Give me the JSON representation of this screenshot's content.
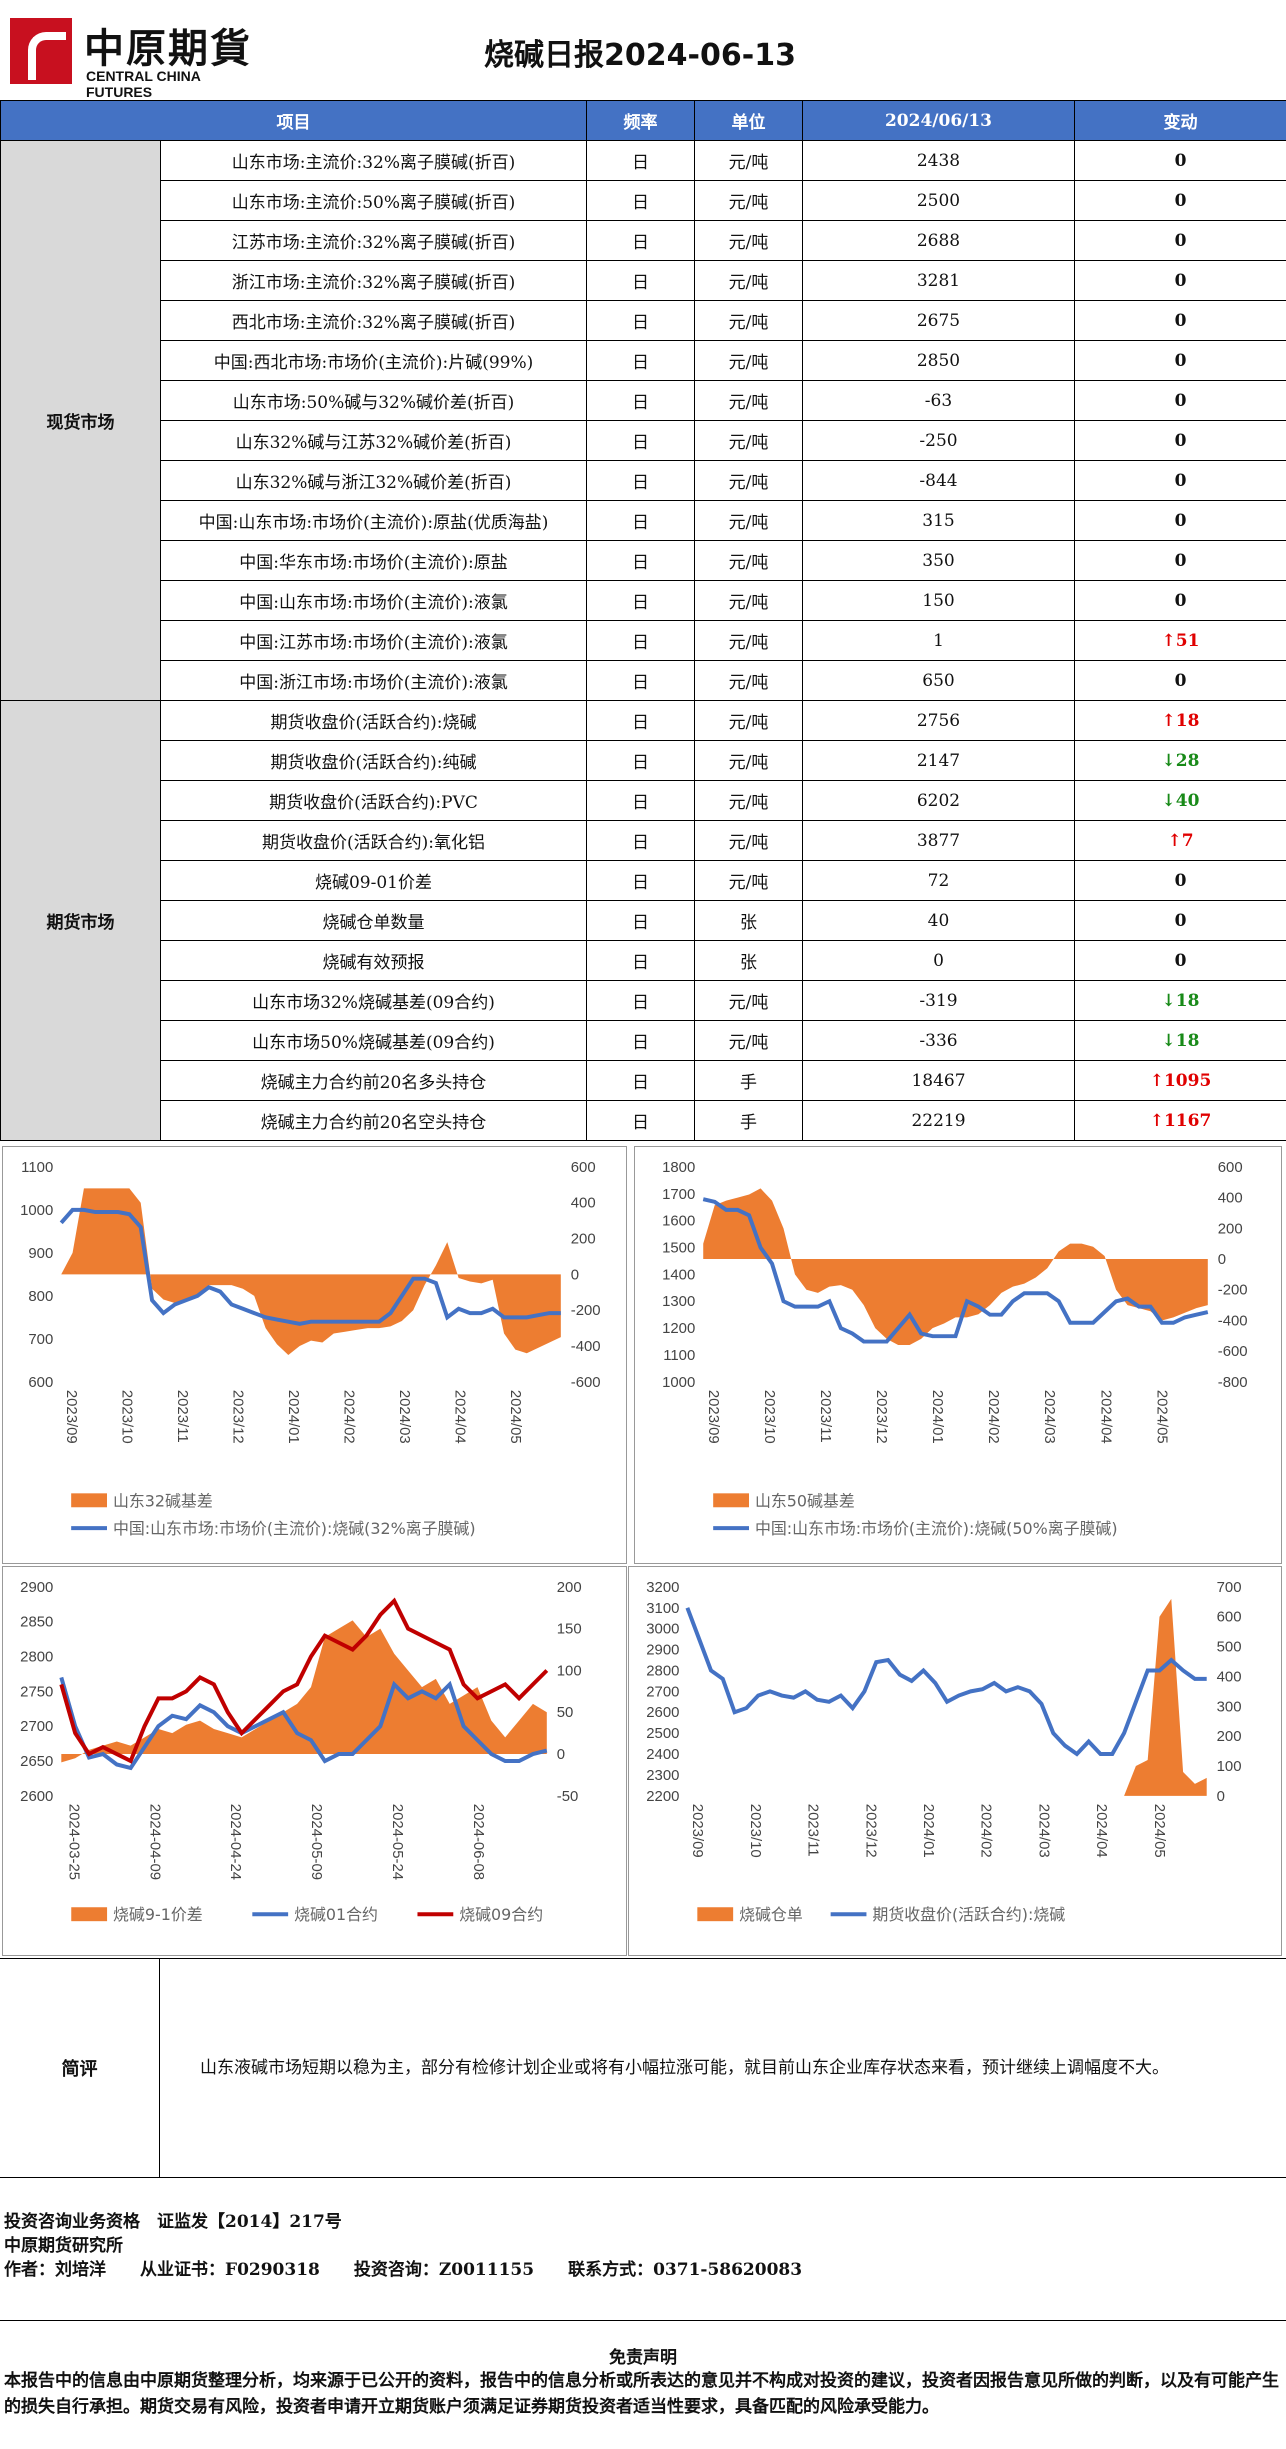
{
  "header": {
    "logo_cn": "中原期貨",
    "logo_en": "CENTRAL CHINA FUTURES",
    "title": "烧碱日报2024-06-13"
  },
  "table": {
    "cols": [
      "项目",
      "频率",
      "单位",
      "2024/06/13",
      "变动"
    ],
    "sections": [
      {
        "name": "现货市场",
        "rows": [
          {
            "item": "山东市场:主流价:32%离子膜碱(折百)",
            "freq": "日",
            "unit": "元/吨",
            "value": "2438",
            "change": "0",
            "dir": ""
          },
          {
            "item": "山东市场:主流价:50%离子膜碱(折百)",
            "freq": "日",
            "unit": "元/吨",
            "value": "2500",
            "change": "0",
            "dir": ""
          },
          {
            "item": "江苏市场:主流价:32%离子膜碱(折百)",
            "freq": "日",
            "unit": "元/吨",
            "value": "2688",
            "change": "0",
            "dir": ""
          },
          {
            "item": "浙江市场:主流价:32%离子膜碱(折百)",
            "freq": "日",
            "unit": "元/吨",
            "value": "3281",
            "change": "0",
            "dir": ""
          },
          {
            "item": "西北市场:主流价:32%离子膜碱(折百)",
            "freq": "日",
            "unit": "元/吨",
            "value": "2675",
            "change": "0",
            "dir": ""
          },
          {
            "item": "中国:西北市场:市场价(主流价):片碱(99%)",
            "freq": "日",
            "unit": "元/吨",
            "value": "2850",
            "change": "0",
            "dir": ""
          },
          {
            "item": "山东市场:50%碱与32%碱价差(折百)",
            "freq": "日",
            "unit": "元/吨",
            "value": "-63",
            "change": "0",
            "dir": ""
          },
          {
            "item": "山东32%碱与江苏32%碱价差(折百)",
            "freq": "日",
            "unit": "元/吨",
            "value": "-250",
            "change": "0",
            "dir": ""
          },
          {
            "item": "山东32%碱与浙江32%碱价差(折百)",
            "freq": "日",
            "unit": "元/吨",
            "value": "-844",
            "change": "0",
            "dir": ""
          },
          {
            "item": "中国:山东市场:市场价(主流价):原盐(优质海盐)",
            "freq": "日",
            "unit": "元/吨",
            "value": "315",
            "change": "0",
            "dir": ""
          },
          {
            "item": "中国:华东市场:市场价(主流价):原盐",
            "freq": "日",
            "unit": "元/吨",
            "value": "350",
            "change": "0",
            "dir": ""
          },
          {
            "item": "中国:山东市场:市场价(主流价):液氯",
            "freq": "日",
            "unit": "元/吨",
            "value": "150",
            "change": "0",
            "dir": ""
          },
          {
            "item": "中国:江苏市场:市场价(主流价):液氯",
            "freq": "日",
            "unit": "元/吨",
            "value": "1",
            "change": "51",
            "dir": "up"
          },
          {
            "item": "中国:浙江市场:市场价(主流价):液氯",
            "freq": "日",
            "unit": "元/吨",
            "value": "650",
            "change": "0",
            "dir": ""
          }
        ]
      },
      {
        "name": "期货市场",
        "rows": [
          {
            "item": "期货收盘价(活跃合约):烧碱",
            "freq": "日",
            "unit": "元/吨",
            "value": "2756",
            "change": "18",
            "dir": "up"
          },
          {
            "item": "期货收盘价(活跃合约):纯碱",
            "freq": "日",
            "unit": "元/吨",
            "value": "2147",
            "change": "28",
            "dir": "dn"
          },
          {
            "item": "期货收盘价(活跃合约):PVC",
            "freq": "日",
            "unit": "元/吨",
            "value": "6202",
            "change": "40",
            "dir": "dn"
          },
          {
            "item": "期货收盘价(活跃合约):氧化铝",
            "freq": "日",
            "unit": "元/吨",
            "value": "3877",
            "change": "7",
            "dir": "up"
          },
          {
            "item": "烧碱09-01价差",
            "freq": "日",
            "unit": "元/吨",
            "value": "72",
            "change": "0",
            "dir": ""
          },
          {
            "item": "烧碱仓单数量",
            "freq": "日",
            "unit": "张",
            "value": "40",
            "change": "0",
            "dir": ""
          },
          {
            "item": "烧碱有效预报",
            "freq": "日",
            "unit": "张",
            "value": "0",
            "change": "0",
            "dir": ""
          },
          {
            "item": "山东市场32%烧碱基差(09合约)",
            "freq": "日",
            "unit": "元/吨",
            "value": "-319",
            "change": "18",
            "dir": "dn"
          },
          {
            "item": "山东市场50%烧碱基差(09合约)",
            "freq": "日",
            "unit": "元/吨",
            "value": "-336",
            "change": "18",
            "dir": "dn"
          },
          {
            "item": "烧碱主力合约前20名多头持仓",
            "freq": "日",
            "unit": "手",
            "value": "18467",
            "change": "1095",
            "dir": "up"
          },
          {
            "item": "烧碱主力合约前20名空头持仓",
            "freq": "日",
            "unit": "手",
            "value": "22219",
            "change": "1167",
            "dir": "up"
          }
        ]
      }
    ]
  },
  "colors": {
    "header": "#4472c4",
    "area": "#ed7d31",
    "line_blue": "#4472c4",
    "line_red": "#c00000",
    "up": "#e00000",
    "down": "#188a18"
  },
  "chart_data": [
    {
      "type": "area",
      "ylim": [
        600,
        1100
      ],
      "y2lim": [
        -600,
        600
      ],
      "yticks": [
        600,
        700,
        800,
        900,
        1000,
        1100
      ],
      "y2ticks": [
        -600,
        -400,
        -200,
        0,
        200,
        400,
        600
      ],
      "xticks": [
        "2023/09",
        "2023/10",
        "2023/11",
        "2023/12",
        "2024/01",
        "2024/02",
        "2024/03",
        "2024/04",
        "2024/05"
      ],
      "series": [
        {
          "name": "山东32碱基差",
          "axis": "right",
          "kind": "area",
          "values": [
            0,
            120,
            480,
            480,
            480,
            480,
            480,
            400,
            -80,
            -140,
            -160,
            -150,
            -130,
            -60,
            -60,
            -60,
            -80,
            -120,
            -300,
            -390,
            -450,
            -400,
            -370,
            -380,
            -330,
            -320,
            -310,
            -300,
            -300,
            -290,
            -260,
            -200,
            -60,
            50,
            180,
            -20,
            -40,
            -50,
            -30,
            -330,
            -420,
            -440,
            -410,
            -380,
            -350
          ]
        },
        {
          "name": "中国:山东市场:市场价(主流价):烧碱(32%离子膜碱)",
          "axis": "left",
          "kind": "line",
          "values": [
            970,
            1000,
            1000,
            995,
            995,
            995,
            990,
            960,
            790,
            760,
            780,
            790,
            800,
            820,
            810,
            780,
            770,
            760,
            750,
            745,
            740,
            735,
            740,
            740,
            740,
            740,
            740,
            740,
            740,
            760,
            800,
            840,
            840,
            830,
            750,
            770,
            760,
            760,
            770,
            750,
            750,
            750,
            755,
            760,
            760
          ]
        }
      ]
    },
    {
      "type": "area",
      "ylim": [
        1000,
        1800
      ],
      "y2lim": [
        -800,
        600
      ],
      "yticks": [
        1000,
        1100,
        1200,
        1300,
        1400,
        1500,
        1600,
        1700,
        1800
      ],
      "y2ticks": [
        -800,
        -600,
        -400,
        -200,
        0,
        200,
        400,
        600
      ],
      "xticks": [
        "2023/09",
        "2023/10",
        "2023/11",
        "2023/12",
        "2024/01",
        "2024/02",
        "2024/03",
        "2024/04",
        "2024/05"
      ],
      "series": [
        {
          "name": "山东50碱基差",
          "axis": "right",
          "kind": "area",
          "values": [
            100,
            350,
            380,
            400,
            420,
            460,
            380,
            200,
            -100,
            -200,
            -220,
            -180,
            -170,
            -200,
            -300,
            -450,
            -520,
            -560,
            -560,
            -520,
            -450,
            -420,
            -380,
            -380,
            -360,
            -300,
            -220,
            -180,
            -160,
            -120,
            -60,
            50,
            100,
            100,
            80,
            20,
            -200,
            -300,
            -320,
            -340,
            -400,
            -380,
            -350,
            -320,
            -300
          ]
        },
        {
          "name": "中国:山东市场:市场价(主流价):烧碱(50%离子膜碱)",
          "axis": "left",
          "kind": "line",
          "values": [
            1680,
            1670,
            1640,
            1640,
            1620,
            1500,
            1440,
            1300,
            1280,
            1280,
            1280,
            1300,
            1200,
            1180,
            1150,
            1150,
            1150,
            1200,
            1250,
            1180,
            1170,
            1170,
            1170,
            1300,
            1280,
            1250,
            1250,
            1300,
            1330,
            1330,
            1330,
            1300,
            1220,
            1220,
            1220,
            1260,
            1300,
            1310,
            1280,
            1280,
            1220,
            1220,
            1240,
            1250,
            1260
          ]
        }
      ]
    },
    {
      "type": "area",
      "ylim": [
        2600,
        2900
      ],
      "y2lim": [
        -50,
        200
      ],
      "yticks": [
        2600,
        2650,
        2700,
        2750,
        2800,
        2850,
        2900
      ],
      "y2ticks": [
        -50,
        0,
        50,
        100,
        150,
        200
      ],
      "xticks": [
        "2024-03-25",
        "2024-04-09",
        "2024-04-24",
        "2024-05-09",
        "2024-05-24",
        "2024-06-08"
      ],
      "series": [
        {
          "name": "烧碱9-1价差",
          "axis": "right",
          "kind": "area",
          "values": [
            -10,
            -5,
            5,
            10,
            15,
            10,
            20,
            30,
            25,
            35,
            40,
            30,
            25,
            20,
            30,
            40,
            50,
            60,
            80,
            140,
            150,
            160,
            140,
            150,
            120,
            100,
            80,
            90,
            60,
            70,
            80,
            40,
            20,
            40,
            60,
            50
          ]
        },
        {
          "name": "烧碱01合约",
          "axis": "left",
          "kind": "line",
          "values": [
            2770,
            2700,
            2655,
            2660,
            2645,
            2640,
            2670,
            2700,
            2715,
            2710,
            2730,
            2720,
            2700,
            2690,
            2700,
            2710,
            2720,
            2690,
            2680,
            2650,
            2660,
            2660,
            2680,
            2700,
            2760,
            2740,
            2750,
            2740,
            2760,
            2700,
            2680,
            2660,
            2650,
            2650,
            2660,
            2665
          ]
        },
        {
          "name": "烧碱09合约",
          "axis": "left",
          "kind": "line",
          "values": [
            2760,
            2690,
            2660,
            2670,
            2660,
            2650,
            2700,
            2740,
            2740,
            2750,
            2770,
            2760,
            2720,
            2690,
            2710,
            2730,
            2750,
            2760,
            2800,
            2830,
            2820,
            2810,
            2830,
            2860,
            2880,
            2840,
            2830,
            2820,
            2810,
            2760,
            2740,
            2750,
            2760,
            2740,
            2760,
            2780
          ]
        }
      ]
    },
    {
      "type": "area",
      "ylim": [
        2200,
        3200
      ],
      "y2lim": [
        0,
        700
      ],
      "yticks": [
        2200,
        2300,
        2400,
        2500,
        2600,
        2700,
        2800,
        2900,
        3000,
        3100,
        3200
      ],
      "y2ticks": [
        0,
        100,
        200,
        300,
        400,
        500,
        600,
        700
      ],
      "xticks": [
        "2023/09",
        "2023/10",
        "2023/11",
        "2023/12",
        "2024/01",
        "2024/02",
        "2024/03",
        "2024/04",
        "2024/05"
      ],
      "series": [
        {
          "name": "烧碱仓单",
          "axis": "right",
          "kind": "area",
          "values": [
            0,
            0,
            0,
            0,
            0,
            0,
            0,
            0,
            0,
            0,
            0,
            0,
            0,
            0,
            0,
            0,
            0,
            0,
            0,
            0,
            0,
            0,
            0,
            0,
            0,
            0,
            0,
            0,
            0,
            0,
            0,
            0,
            0,
            0,
            0,
            0,
            0,
            0,
            100,
            120,
            600,
            660,
            80,
            40,
            60
          ]
        },
        {
          "name": "期货收盘价(活跃合约):烧碱",
          "axis": "left",
          "kind": "line",
          "values": [
            3100,
            2950,
            2800,
            2760,
            2600,
            2620,
            2680,
            2700,
            2680,
            2670,
            2700,
            2660,
            2650,
            2680,
            2620,
            2700,
            2840,
            2850,
            2780,
            2750,
            2800,
            2740,
            2650,
            2680,
            2700,
            2710,
            2740,
            2700,
            2720,
            2700,
            2640,
            2500,
            2440,
            2400,
            2460,
            2400,
            2400,
            2500,
            2650,
            2800,
            2800,
            2850,
            2800,
            2760,
            2760
          ]
        }
      ]
    }
  ],
  "comment": {
    "label": "简评",
    "text": "山东液碱市场短期以稳为主，部分有检修计划企业或将有小幅拉涨可能，就目前山东企业库存状态来看，预计继续上调幅度不大。"
  },
  "footer": {
    "line1": "投资咨询业务资格　证监发【2014】217号",
    "line2": "中原期货研究所",
    "line3": "作者：刘培洋　　从业证书：F0290318　　投资咨询：Z0011155　　联系方式：0371-58620083"
  },
  "disclaimer": {
    "title": "免责声明",
    "text": "本报告中的信息由中原期货整理分析，均来源于已公开的资料，报告中的信息分析或所表达的意见并不构成对投资的建议，投资者因报告意见所做的判断，以及有可能产生的损失自行承担。期货交易有风险，投资者申请开立期货账户须满足证券期货投资者适当性要求，具备匹配的风险承受能力。"
  }
}
